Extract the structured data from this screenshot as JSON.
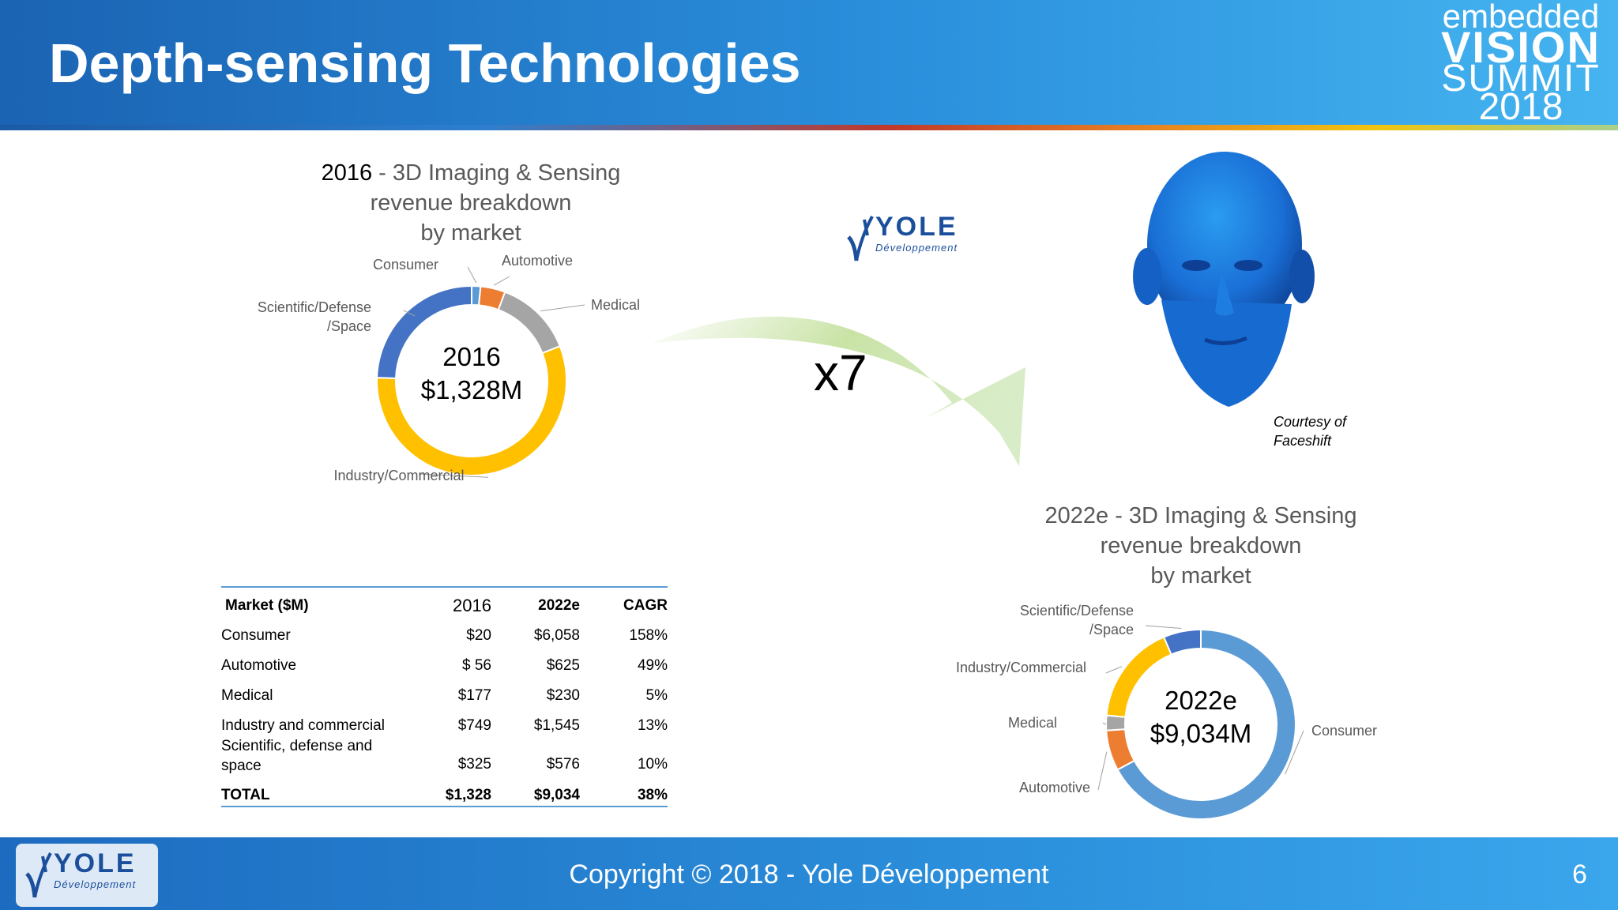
{
  "header": {
    "title": "Depth-sensing Technologies",
    "logo_line1": "embedded",
    "logo_line2": "VISION",
    "logo_line3": "SUMMIT",
    "logo_line4": "2018"
  },
  "footer": {
    "copyright": "Copyright © 2018 - Yole Développement",
    "page_number": "6",
    "logo_word": "YOLE",
    "logo_sub": "Développement"
  },
  "mid_logo": {
    "word": "YOLE",
    "sub": "Développement"
  },
  "arrow": {
    "label": "x7"
  },
  "courtesy": {
    "line1": "Courtesy of",
    "line2": "Faceshift"
  },
  "chart_2016": {
    "title_year": "2016",
    "title_rest": " - 3D Imaging & Sensing",
    "title_line2": "revenue breakdown",
    "title_line3": "by market",
    "center_line1": "2016",
    "center_line2": "$1,328M"
  },
  "chart_2022": {
    "title_line1": "2022e - 3D Imaging & Sensing",
    "title_line2": "revenue breakdown",
    "title_line3": "by market",
    "center_line1": "2022e",
    "center_line2": "$9,034M"
  },
  "table": {
    "headers": [
      "Market ($M)",
      "2016",
      "2022e",
      "CAGR"
    ],
    "rows": [
      [
        "Consumer",
        "$20",
        "$6,058",
        "158%"
      ],
      [
        "Automotive",
        "$ 56",
        "$625",
        "49%"
      ],
      [
        "Medical",
        "$177",
        "$230",
        "5%"
      ],
      [
        "Industry and commercial",
        "$749",
        "$1,545",
        "13%"
      ],
      [
        "Scientific, defense and space",
        "$325",
        "$576",
        "10%"
      ]
    ],
    "total": [
      "TOTAL",
      "$1,328",
      "$9,034",
      "38%"
    ]
  },
  "chart_data": [
    {
      "type": "pie",
      "donut": true,
      "title": "2016 - 3D Imaging & Sensing revenue breakdown by market",
      "center_label": "2016 $1,328M",
      "categories": [
        "Consumer",
        "Automotive",
        "Medical",
        "Industry/Commercial",
        "Scientific/Defense /Space"
      ],
      "values": [
        20,
        56,
        177,
        749,
        325
      ],
      "colors": [
        "#5b9bd5",
        "#ed7d31",
        "#a5a5a5",
        "#ffc000",
        "#4472c4"
      ],
      "start_angle_deg": 0
    },
    {
      "type": "pie",
      "donut": true,
      "title": "2022e - 3D Imaging & Sensing revenue breakdown by market",
      "center_label": "2022e $9,034M",
      "categories": [
        "Consumer",
        "Automotive",
        "Medical",
        "Industry/Commercial",
        "Scientific/Defense /Space"
      ],
      "values": [
        6058,
        625,
        230,
        1545,
        576
      ],
      "colors": [
        "#5b9bd5",
        "#ed7d31",
        "#a5a5a5",
        "#ffc000",
        "#4472c4"
      ],
      "start_angle_deg": 0
    }
  ]
}
